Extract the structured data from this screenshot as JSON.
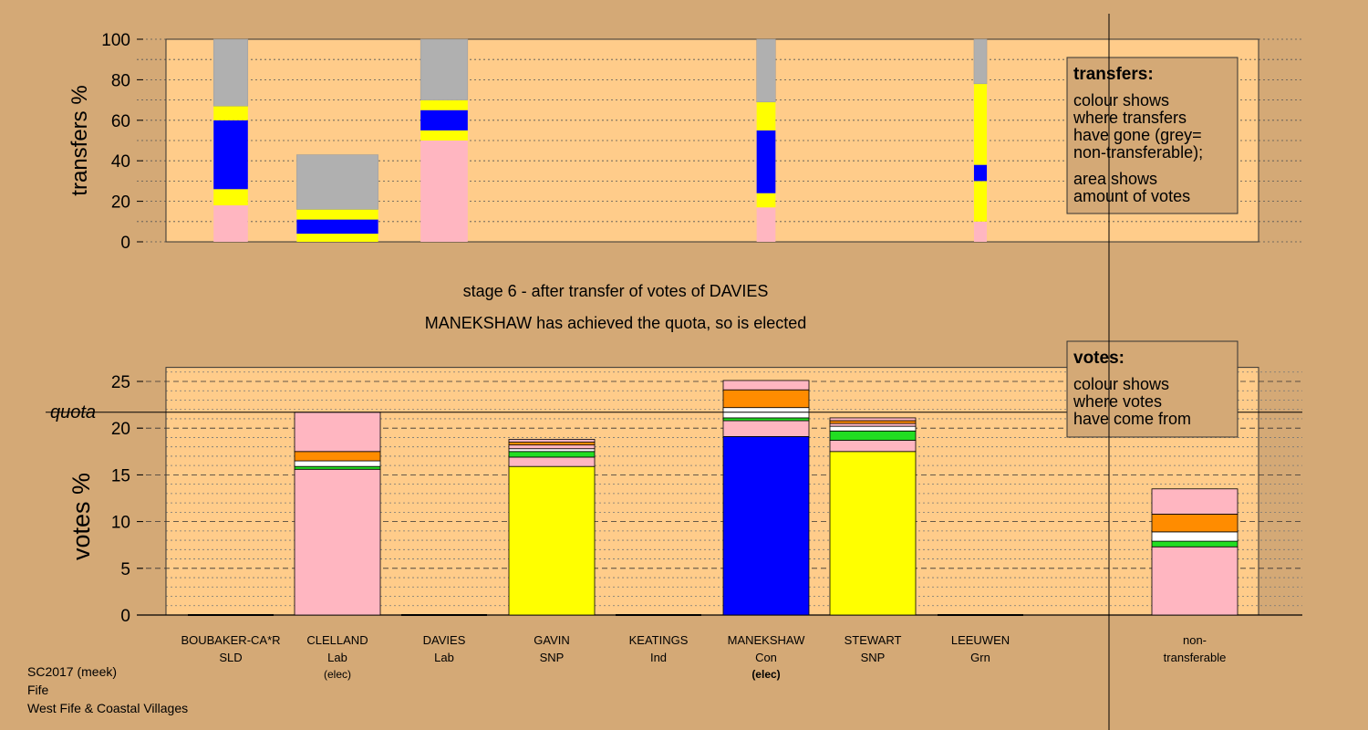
{
  "chart_data": [
    {
      "type": "bar",
      "stacked": true,
      "panel": "transfers",
      "ylabel": "transfers %",
      "ylim": [
        0,
        100
      ],
      "yticks": [
        0,
        20,
        40,
        60,
        80,
        100
      ],
      "grid": "dotted",
      "legend": {
        "position": "top-right",
        "title": "transfers:",
        "lines1": [
          "colour shows",
          "where transfers",
          "have gone (grey=",
          "non-transferable);"
        ],
        "lines2": [
          "area shows",
          "amount of votes"
        ]
      },
      "bars": [
        {
          "candidate": "BOUBAKER-CA*R",
          "width_share": 0.4,
          "segments": [
            {
              "color": "#ffb6c1",
              "value": 18
            },
            {
              "color": "#ffff00",
              "value": 8
            },
            {
              "color": "#0000ff",
              "value": 34
            },
            {
              "color": "#ffff00",
              "value": 7
            },
            {
              "color": "#b0b0b0",
              "value": 33
            }
          ]
        },
        {
          "candidate": "CLELLAND",
          "width_share": 0.95,
          "segments": [
            {
              "color": "#ffff00",
              "value": 4
            },
            {
              "color": "#0000ff",
              "value": 7
            },
            {
              "color": "#ffff00",
              "value": 5
            },
            {
              "color": "#b0b0b0",
              "value": 27
            }
          ]
        },
        {
          "candidate": "DAVIES",
          "width_share": 0.55,
          "segments": [
            {
              "color": "#ffb6c1",
              "value": 50
            },
            {
              "color": "#ffff00",
              "value": 5
            },
            {
              "color": "#0000ff",
              "value": 10
            },
            {
              "color": "#ffff00",
              "value": 5
            },
            {
              "color": "#b0b0b0",
              "value": 30
            }
          ]
        },
        {
          "candidate": "MANEKSHAW",
          "width_share": 0.22,
          "segments": [
            {
              "color": "#ffb6c1",
              "value": 17
            },
            {
              "color": "#ffff00",
              "value": 7
            },
            {
              "color": "#0000ff",
              "value": 31
            },
            {
              "color": "#ffff00",
              "value": 14
            },
            {
              "color": "#b0b0b0",
              "value": 31
            }
          ]
        },
        {
          "candidate": "LEEUWEN",
          "width_share": 0.15,
          "segments": [
            {
              "color": "#ffb6c1",
              "value": 10
            },
            {
              "color": "#ffff00",
              "value": 20
            },
            {
              "color": "#0000ff",
              "value": 8
            },
            {
              "color": "#ffff00",
              "value": 40
            },
            {
              "color": "#b0b0b0",
              "value": 22
            }
          ]
        }
      ]
    },
    {
      "type": "bar",
      "stacked": true,
      "panel": "votes",
      "ylabel": "votes %",
      "ylim": [
        0,
        26.5
      ],
      "yticks": [
        0,
        5,
        10,
        15,
        20,
        25
      ],
      "quota": 21.7,
      "quota_label": "quota",
      "grid": "dashed",
      "legend": {
        "position": "top-right",
        "title": "votes:",
        "lines": [
          "colour shows",
          "where votes",
          "have come from"
        ]
      },
      "categories": [
        {
          "name": "BOUBAKER-CA*R",
          "party": "SLD",
          "note": ""
        },
        {
          "name": "CLELLAND",
          "party": "Lab",
          "note": "(elec)"
        },
        {
          "name": "DAVIES",
          "party": "Lab",
          "note": ""
        },
        {
          "name": "GAVIN",
          "party": "SNP",
          "note": ""
        },
        {
          "name": "KEATINGS",
          "party": "Ind",
          "note": ""
        },
        {
          "name": "MANEKSHAW",
          "party": "Con",
          "note": "(elec)"
        },
        {
          "name": "STEWART",
          "party": "SNP",
          "note": ""
        },
        {
          "name": "LEEUWEN",
          "party": "Grn",
          "note": ""
        },
        {
          "name": "non-",
          "party": "transferable",
          "note": ""
        }
      ],
      "stacks": [
        [],
        [
          {
            "color": "#ffb6c1",
            "value": 15.6
          },
          {
            "color": "#22dd22",
            "value": 0.3
          },
          {
            "color": "#ffffff",
            "value": 0.6
          },
          {
            "color": "#ff8c00",
            "value": 1.0
          },
          {
            "color": "#ffb6c1",
            "value": 4.2
          }
        ],
        [],
        [
          {
            "color": "#ffff00",
            "value": 15.9
          },
          {
            "color": "#ffb6c1",
            "value": 1.0
          },
          {
            "color": "#22dd22",
            "value": 0.6
          },
          {
            "color": "#ffffff",
            "value": 0.3
          },
          {
            "color": "#ffb6c1",
            "value": 0.4
          },
          {
            "color": "#ff8c00",
            "value": 0.3
          },
          {
            "color": "#ffb6c1",
            "value": 0.3
          }
        ],
        [],
        [
          {
            "color": "#0000ff",
            "value": 19.1
          },
          {
            "color": "#ffb6c1",
            "value": 1.7
          },
          {
            "color": "#22dd22",
            "value": 0.3
          },
          {
            "color": "#ffffff",
            "value": 1.1
          },
          {
            "color": "#ff8c00",
            "value": 1.9
          },
          {
            "color": "#ffb6c1",
            "value": 1.0
          }
        ],
        [
          {
            "color": "#ffff00",
            "value": 17.5
          },
          {
            "color": "#ffb6c1",
            "value": 1.2
          },
          {
            "color": "#22dd22",
            "value": 1.0
          },
          {
            "color": "#ffffff",
            "value": 0.5
          },
          {
            "color": "#ffb6c1",
            "value": 0.3
          },
          {
            "color": "#ff8c00",
            "value": 0.3
          },
          {
            "color": "#ffb6c1",
            "value": 0.3
          }
        ],
        [],
        [
          {
            "color": "#ffb6c1",
            "value": 7.3
          },
          {
            "color": "#22dd22",
            "value": 0.6
          },
          {
            "color": "#ffffff",
            "value": 1.0
          },
          {
            "color": "#ff8c00",
            "value": 1.9
          },
          {
            "color": "#ffb6c1",
            "value": 2.7
          }
        ]
      ]
    }
  ],
  "stage_line": "stage 6 - after transfer of votes of DAVIES",
  "status_line": "MANEKSHAW has achieved the quota, so is elected",
  "footer": [
    "SC2017 (meek)",
    "Fife",
    "West Fife & Coastal Villages"
  ],
  "colors": {
    "background": "#d4a976",
    "plot": "#ffcc8a",
    "nontransferable": "#b0b0b0"
  }
}
